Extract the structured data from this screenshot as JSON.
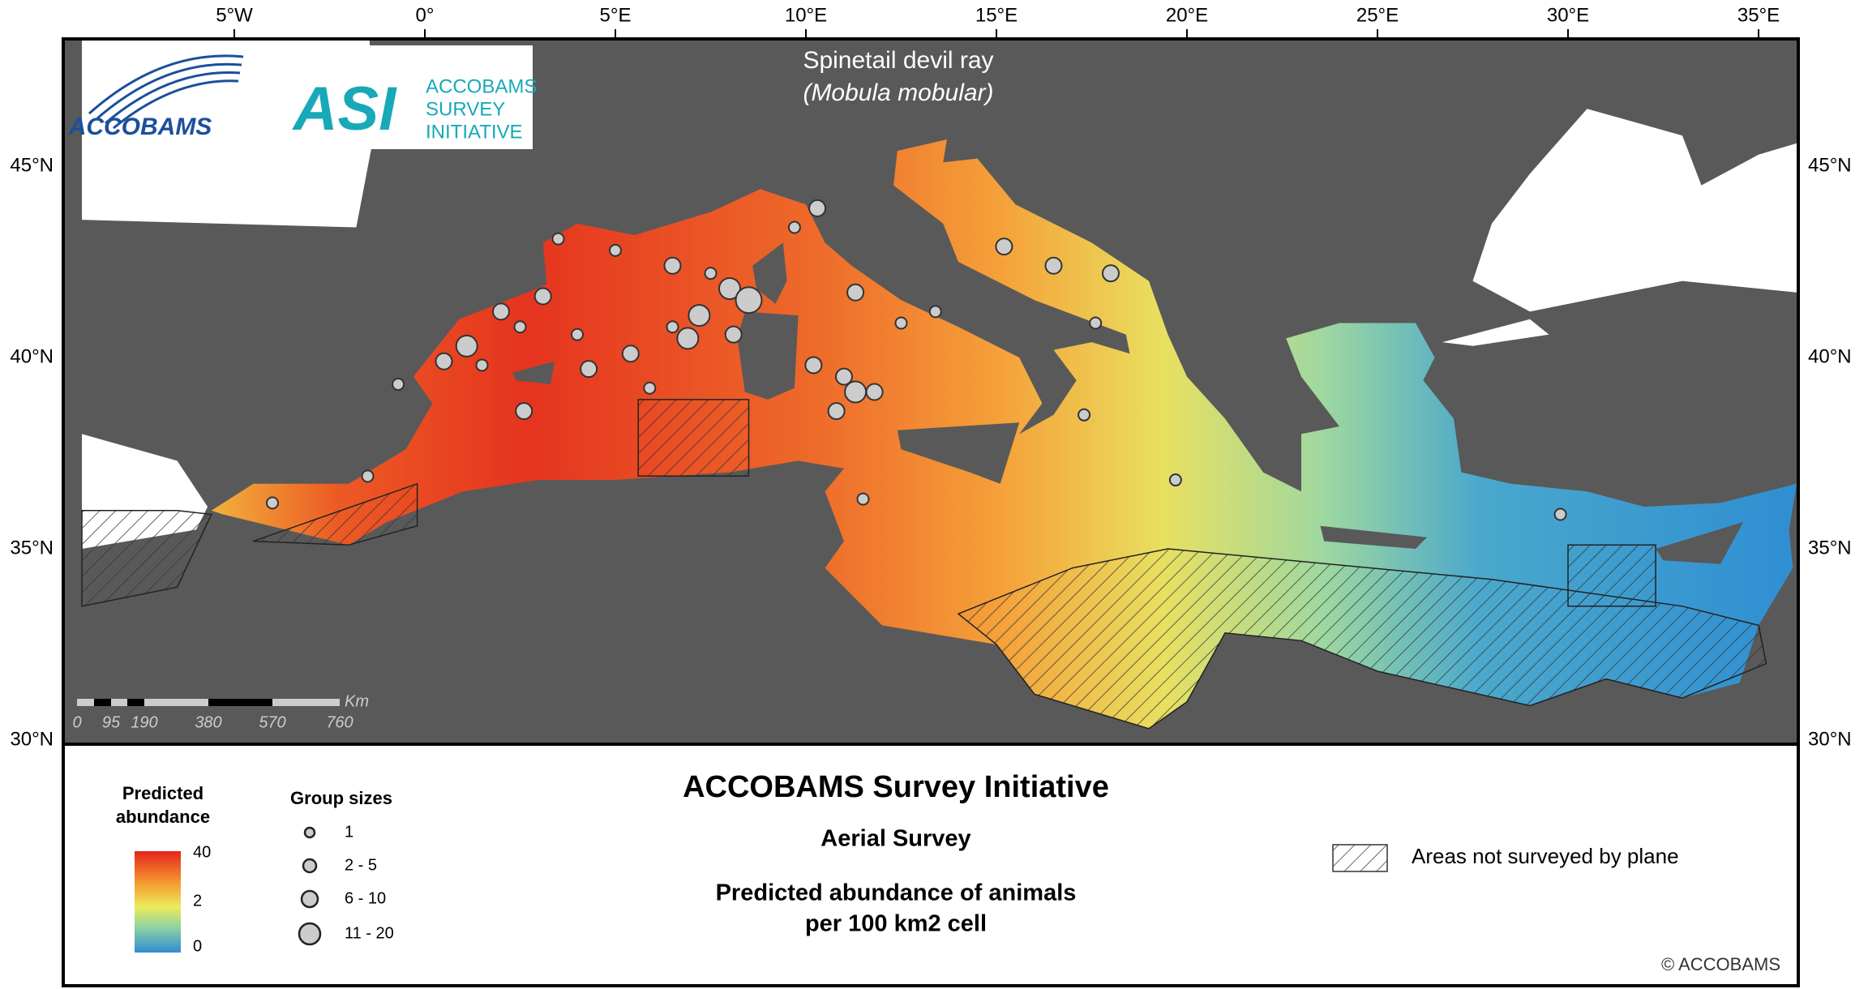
{
  "map": {
    "title": "Spinetail devil ray",
    "subtitle": "(Mobula mobular)",
    "longitude_labels": [
      "5°W",
      "0°",
      "5°E",
      "10°E",
      "15°E",
      "20°E",
      "25°E",
      "30°E",
      "35°E"
    ],
    "latitude_labels": [
      "45°N",
      "40°N",
      "35°N",
      "30°N"
    ],
    "scale_bar": {
      "unit": "Km",
      "labels": [
        "0",
        "95",
        "190",
        "380",
        "570",
        "760"
      ]
    },
    "logos": {
      "accobams": "ACCOBAMS",
      "asi_short": "ASI",
      "asi_lines": [
        "ACCOBAMS",
        "SURVEY",
        "INITIATIVE"
      ]
    }
  },
  "legend": {
    "abundance_title": [
      "Predicted",
      "abundance"
    ],
    "abundance_labels": [
      "40",
      "2",
      "0"
    ],
    "group_title": "Group sizes",
    "group_labels": [
      "1",
      "2 - 5",
      "6 - 10",
      "11 - 20"
    ],
    "hatch_label": "Areas not surveyed by plane"
  },
  "footer": {
    "title": "ACCOBAMS Survey Initiative",
    "subtitle": "Aerial Survey",
    "description": [
      "Predicted abundance of animals",
      "per 100 km2 cell"
    ],
    "copyright": "© ACCOBAMS"
  }
}
